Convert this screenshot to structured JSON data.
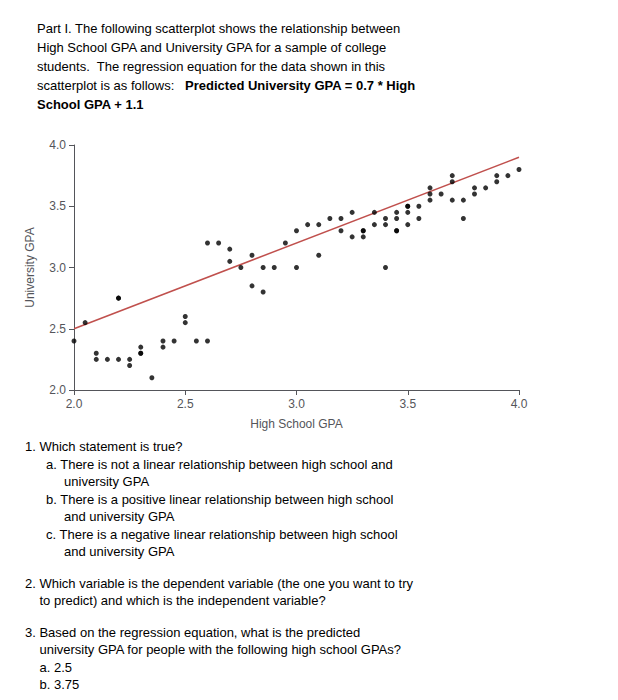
{
  "chart_data": {
    "type": "scatter",
    "xlabel": "High School GPA",
    "ylabel": "University GPA",
    "xlim": [
      2.0,
      4.0
    ],
    "ylim": [
      2.0,
      4.0
    ],
    "xticks": [
      {
        "value": 2,
        "label": "2.0"
      },
      {
        "value": 2.5,
        "label": "2.5"
      },
      {
        "value": 3,
        "label": "3.0"
      },
      {
        "value": 3.5,
        "label": "3.5"
      },
      {
        "value": 4,
        "label": "4.0"
      }
    ],
    "yticks": [
      {
        "value": 2,
        "label": "2.0"
      },
      {
        "value": 2.5,
        "label": "2.5"
      },
      {
        "value": 3,
        "label": "3.0"
      },
      {
        "value": 3.5,
        "label": "3.5"
      },
      {
        "value": 4,
        "label": "4.0"
      }
    ],
    "grid": false,
    "series": [
      {
        "type": "scatter",
        "color": "#000000",
        "x": [
          2.0,
          2.05,
          2.1,
          2.15,
          2.2,
          2.2,
          2.25,
          2.25,
          2.3,
          2.3,
          2.35,
          2.4,
          2.45,
          2.5,
          2.55,
          2.6,
          2.65,
          2.7,
          2.75,
          2.8,
          2.85,
          2.9,
          2.95,
          3.0,
          3.0,
          3.05,
          3.1,
          3.15,
          3.2,
          3.25,
          3.3,
          3.3,
          3.35,
          3.35,
          3.4,
          3.4,
          3.4,
          3.45,
          3.45,
          3.45,
          3.5,
          3.5,
          3.5,
          3.55,
          3.55,
          3.6,
          3.6,
          3.65,
          3.7,
          3.7,
          3.75,
          3.75,
          3.8,
          3.85,
          3.9,
          3.95,
          4.0,
          2.1,
          2.2,
          2.3,
          2.4,
          2.5,
          2.6,
          2.7,
          2.8,
          2.85,
          3.1,
          3.2,
          3.25,
          3.3,
          3.45,
          3.5,
          3.6,
          3.7,
          3.8,
          3.9
        ],
        "values": [
          2.4,
          2.55,
          2.25,
          2.25,
          2.25,
          2.75,
          2.2,
          2.25,
          2.3,
          2.35,
          2.1,
          2.4,
          2.4,
          2.6,
          2.4,
          2.4,
          3.2,
          3.05,
          3.0,
          3.1,
          3.0,
          3.0,
          3.2,
          3.0,
          3.3,
          3.35,
          3.35,
          3.4,
          3.3,
          3.45,
          3.25,
          3.3,
          3.35,
          3.45,
          3.0,
          3.35,
          3.4,
          3.3,
          3.4,
          3.45,
          3.35,
          3.45,
          3.5,
          3.4,
          3.5,
          3.55,
          3.6,
          3.6,
          3.55,
          3.7,
          3.4,
          3.55,
          3.65,
          3.65,
          3.7,
          3.75,
          3.8,
          2.3,
          2.75,
          2.3,
          2.35,
          2.55,
          3.2,
          3.15,
          2.85,
          2.8,
          3.1,
          3.4,
          3.25,
          3.3,
          3.3,
          3.5,
          3.65,
          3.75,
          3.6,
          3.75
        ]
      },
      {
        "type": "line",
        "color": "#c0504d",
        "x": [
          2.0,
          4.0
        ],
        "values": [
          2.5,
          3.9
        ]
      }
    ],
    "annotations": [
      "Part I. The following scatterplot shows the relationship between",
      "High School GPA and University GPA for a sample of college",
      "students.  The regression equation for the data shown in this",
      "scatterplot is as follows:   ",
      "Predicted University GPA = 0.7 * High",
      "School GPA + 1.1",
      "1. Which statement is true?",
      "a. There is not a linear relationship between high school and",
      "     university GPA",
      "b. There is a positive linear relationship between high school",
      "     and university GPA",
      "c. There is a negative linear relationship between high school",
      "     and university GPA",
      "2. Which variable is the dependent variable (the one you want to try",
      "    to predict) and which is the independent variable?",
      "3. Based on the regression equation, what is the predicted",
      "    university GPA for people with the following high school GPAs?",
      "    a. 2.5",
      "    b. 3.75"
    ]
  }
}
